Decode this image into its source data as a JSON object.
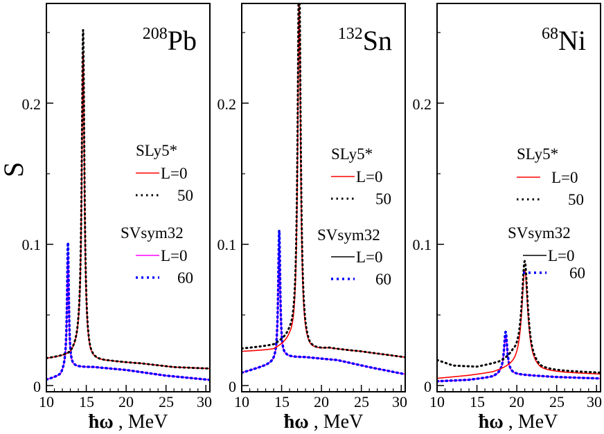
{
  "colors": {
    "sly5_L0": "#ff0000",
    "sly5_L50": "#000000",
    "svsym32_L0_magenta": "#ff00ff",
    "svsym32_L0_black": "#000000",
    "svsym32_L60": "#0000ff"
  },
  "chart_data": [
    {
      "type": "line",
      "title_mass": "208",
      "title_element": "Pb",
      "ylabel": "S",
      "xlabel_symbol": "ħω",
      "xlabel_unit": " , MeV",
      "xlim": [
        10,
        30.5
      ],
      "ylim": [
        0,
        0.26
      ],
      "xticks": [
        10,
        15,
        20,
        25,
        30
      ],
      "xtick_labels": [
        "10",
        "15",
        "20",
        "25",
        "30"
      ],
      "yticks": [
        0,
        0.1,
        0.2
      ],
      "ytick_labels": [
        "0",
        "0.1",
        "0.2"
      ],
      "legend": {
        "group1": "SLy5*",
        "group1_entries": [
          "L=0",
          "50"
        ],
        "group2": "SVsym32",
        "group2_entries": [
          "L=0",
          "60"
        ]
      },
      "series": [
        {
          "name": "SLy5* L=0",
          "style": "solid",
          "color": "#ff0000",
          "peak_center": 14.6,
          "peak_height": 0.215,
          "peak_width": 0.2,
          "bg": [
            [
              10,
              0.019
            ],
            [
              13,
              0.021
            ],
            [
              14,
              0.025
            ],
            [
              15.5,
              0.017
            ],
            [
              18,
              0.017
            ],
            [
              22,
              0.0155
            ],
            [
              26,
              0.013
            ],
            [
              30.5,
              0.012
            ]
          ]
        },
        {
          "name": "SLy5* L=50",
          "style": "dotted",
          "color": "#000000",
          "peak_center": 14.6,
          "peak_height": 0.23,
          "peak_width": 0.2,
          "bg": [
            [
              10,
              0.019
            ],
            [
              13,
              0.021
            ],
            [
              14,
              0.025
            ],
            [
              15.5,
              0.017
            ],
            [
              18,
              0.017
            ],
            [
              22,
              0.0155
            ],
            [
              26,
              0.013
            ],
            [
              30.5,
              0.012
            ]
          ]
        },
        {
          "name": "SVsym32 L=0",
          "style": "solid",
          "color": "#ff00ff",
          "peak_center": 12.7,
          "peak_height": 0.08,
          "peak_width": 0.13,
          "bg": [
            [
              10,
              0.004
            ],
            [
              11.8,
              0.007
            ],
            [
              12.4,
              0.012
            ],
            [
              13.5,
              0.013
            ],
            [
              16,
              0.013
            ],
            [
              20,
              0.011
            ],
            [
              25,
              0.007
            ],
            [
              30.5,
              0.004
            ]
          ]
        },
        {
          "name": "SVsym32 L=60",
          "style": "dotted",
          "color": "#0000ff",
          "peak_center": 12.7,
          "peak_height": 0.089,
          "peak_width": 0.13,
          "bg": [
            [
              10,
              0.004
            ],
            [
              11.8,
              0.007
            ],
            [
              12.4,
              0.012
            ],
            [
              13.5,
              0.013
            ],
            [
              16,
              0.013
            ],
            [
              20,
              0.011
            ],
            [
              25,
              0.007
            ],
            [
              30.5,
              0.004
            ]
          ]
        }
      ]
    },
    {
      "type": "line",
      "title_mass": "132",
      "title_element": "Sn",
      "xlabel_symbol": "ħω",
      "xlabel_unit": " , MeV",
      "xlim": [
        10,
        30.5
      ],
      "ylim": [
        0,
        0.26
      ],
      "xticks": [
        10,
        15,
        20,
        25,
        30
      ],
      "xtick_labels": [
        "10",
        "15",
        "20",
        "25",
        "30"
      ],
      "yticks": [
        0,
        0.1,
        0.2
      ],
      "ytick_labels": [
        "0",
        "0.1",
        "0.2"
      ],
      "legend": {
        "group1": "SLy5*",
        "group1_entries": [
          "L=0",
          "50"
        ],
        "group2": "SVsym32",
        "group2_entries": [
          "L=0",
          "60"
        ]
      },
      "series": [
        {
          "name": "SLy5* L=0",
          "style": "solid",
          "color": "#ff0000",
          "peak_center": 17.2,
          "peak_height": 0.245,
          "peak_width": 0.22,
          "bg": [
            [
              10,
              0.024
            ],
            [
              14,
              0.025
            ],
            [
              16,
              0.03
            ],
            [
              18.5,
              0.024
            ],
            [
              21,
              0.026
            ],
            [
              25,
              0.024
            ],
            [
              30.5,
              0.02
            ]
          ]
        },
        {
          "name": "SLy5* L=50",
          "style": "dotted",
          "color": "#000000",
          "peak_center": 17.2,
          "peak_height": 0.275,
          "peak_width": 0.22,
          "bg": [
            [
              10,
              0.026
            ],
            [
              14,
              0.028
            ],
            [
              16,
              0.033
            ],
            [
              18.5,
              0.024
            ],
            [
              21,
              0.026
            ],
            [
              25,
              0.024
            ],
            [
              30.5,
              0.02
            ]
          ]
        },
        {
          "name": "SVsym32 L=0",
          "style": "solid",
          "color": "#ff00ff",
          "peak_center": 14.7,
          "peak_height": 0.085,
          "peak_width": 0.15,
          "bg": [
            [
              10,
              0.009
            ],
            [
              13,
              0.014
            ],
            [
              14,
              0.016
            ],
            [
              15.5,
              0.02
            ],
            [
              18,
              0.02
            ],
            [
              22,
              0.018
            ],
            [
              26,
              0.013
            ],
            [
              30.5,
              0.008
            ]
          ]
        },
        {
          "name": "SVsym32 L=60",
          "style": "dotted",
          "color": "#0000ff",
          "peak_center": 14.7,
          "peak_height": 0.092,
          "peak_width": 0.15,
          "bg": [
            [
              10,
              0.009
            ],
            [
              13,
              0.014
            ],
            [
              14,
              0.016
            ],
            [
              15.5,
              0.02
            ],
            [
              18,
              0.02
            ],
            [
              22,
              0.018
            ],
            [
              26,
              0.013
            ],
            [
              30.5,
              0.008
            ]
          ]
        }
      ]
    },
    {
      "type": "line",
      "title_mass": "68",
      "title_element": "Ni",
      "xlabel_symbol": "ħω",
      "xlabel_unit": " , MeV",
      "xlim": [
        10,
        30.5
      ],
      "ylim": [
        0,
        0.26
      ],
      "xticks": [
        10,
        15,
        20,
        25,
        30
      ],
      "xtick_labels": [
        "10",
        "15",
        "20",
        "25",
        "30"
      ],
      "yticks": [
        0,
        0.1,
        0.2
      ],
      "ytick_labels": [
        "0",
        "0.1",
        "0.2"
      ],
      "legend": {
        "group1": "SLy5*",
        "group1_entries": [
          "L=0",
          "50"
        ],
        "group2": "SVsym32",
        "group2_entries": [
          "L=0",
          "60"
        ]
      },
      "series": [
        {
          "name": "SLy5* L=0",
          "style": "solid",
          "color": "#ff0000",
          "peak_center": 21.0,
          "peak_height": 0.068,
          "peak_width": 0.45,
          "bg": [
            [
              10,
              0.005
            ],
            [
              14,
              0.007
            ],
            [
              17,
              0.009
            ],
            [
              19,
              0.012
            ],
            [
              21,
              0.014
            ],
            [
              23,
              0.01
            ],
            [
              26,
              0.009
            ],
            [
              30.5,
              0.008
            ]
          ]
        },
        {
          "name": "SLy5* L=50",
          "style": "dotted",
          "color": "#000000",
          "peak_center": 21.0,
          "peak_height": 0.072,
          "peak_width": 0.45,
          "bg": [
            [
              10,
              0.018
            ],
            [
              12,
              0.014
            ],
            [
              15,
              0.013
            ],
            [
              18,
              0.016
            ],
            [
              19.5,
              0.02
            ],
            [
              23,
              0.011
            ],
            [
              26,
              0.01
            ],
            [
              30.5,
              0.009
            ]
          ]
        },
        {
          "name": "SVsym32 L=0",
          "style": "solid",
          "color": "#ff00ff",
          "peak_center": 18.6,
          "peak_height": 0.027,
          "peak_width": 0.25,
          "bg": [
            [
              10,
              0.003
            ],
            [
              14,
              0.004
            ],
            [
              17,
              0.006
            ],
            [
              18,
              0.008
            ],
            [
              19,
              0.008
            ],
            [
              22,
              0.007
            ],
            [
              25,
              0.006
            ],
            [
              30.5,
              0.005
            ]
          ]
        },
        {
          "name": "SVsym32 L=60",
          "style": "dotted",
          "color": "#0000ff",
          "peak_center": 18.6,
          "peak_height": 0.03,
          "peak_width": 0.25,
          "bg": [
            [
              10,
              0.003
            ],
            [
              14,
              0.004
            ],
            [
              17,
              0.006
            ],
            [
              18,
              0.008
            ],
            [
              19,
              0.008
            ],
            [
              22,
              0.007
            ],
            [
              25,
              0.006
            ],
            [
              30.5,
              0.005
            ]
          ]
        }
      ]
    }
  ]
}
